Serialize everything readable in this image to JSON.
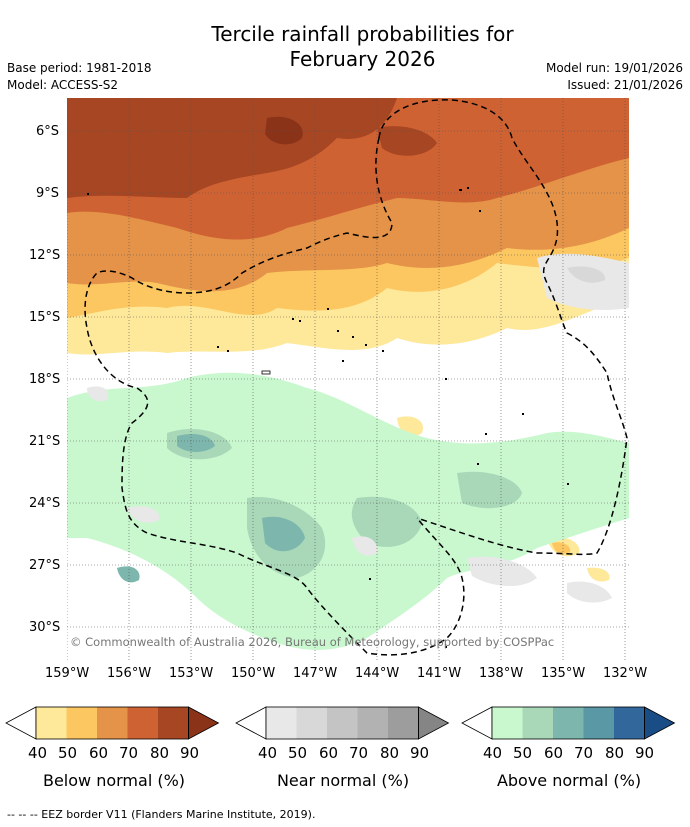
{
  "title_line1": "Tercile rainfall probabilities for",
  "title_line2": "February 2026",
  "base_period": "Base period: 1981-2018",
  "model": "Model: ACCESS-S2",
  "model_run": "Model run: 19/01/2026",
  "issued": "Issued: 21/01/2026",
  "copyright": "© Commonwealth of Australia 2026, Bureau of Meteorology, supported by COSPPac",
  "lat_labels": [
    "6°S",
    "9°S",
    "12°S",
    "15°S",
    "18°S",
    "21°S",
    "24°S",
    "27°S",
    "30°S"
  ],
  "lon_labels": [
    "159°W",
    "156°W",
    "153°W",
    "150°W",
    "147°W",
    "144°W",
    "141°W",
    "138°W",
    "135°W",
    "132°W"
  ],
  "colorbars": [
    {
      "label": "Below normal (%)",
      "ticks": [
        "40",
        "50",
        "60",
        "70",
        "80",
        "90"
      ],
      "colors": [
        "#fee89a",
        "#fcc760",
        "#e49348",
        "#cf6233",
        "#a74623",
        "#8a3318"
      ]
    },
    {
      "label": "Near normal (%)",
      "ticks": [
        "40",
        "50",
        "60",
        "70",
        "80",
        "90"
      ],
      "colors": [
        "#e8e8e8",
        "#d8d8d8",
        "#c4c4c4",
        "#b2b2b2",
        "#9d9d9d",
        "#858585"
      ]
    },
    {
      "label": "Above normal (%)",
      "ticks": [
        "40",
        "50",
        "60",
        "70",
        "80",
        "90"
      ],
      "colors": [
        "#c9f8cf",
        "#a8d8b8",
        "#7cb6ad",
        "#5a98a6",
        "#31679b",
        "#1a4d85"
      ]
    }
  ],
  "footer": "-- -- -- EEZ border V11 (Flanders Marine Institute, 2019)."
}
